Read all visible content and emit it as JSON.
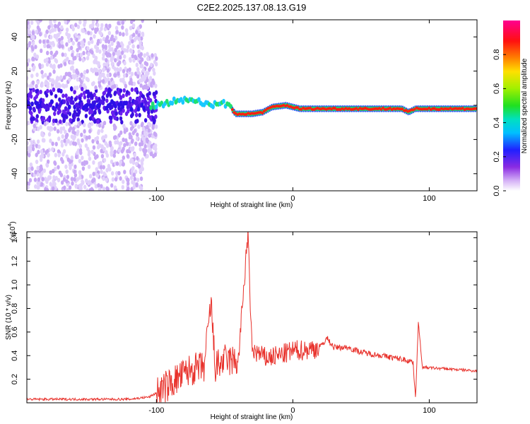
{
  "title": "C2E2.2025.137.08.13.G19",
  "chart_data": [
    {
      "type": "heatmap",
      "xlabel": "Height of straight line (km)",
      "ylabel": "Frequency (Hz)",
      "xlim": [
        -195,
        135
      ],
      "ylim": [
        -50,
        50
      ],
      "xticks": [
        -100,
        0,
        100
      ],
      "yticks": [
        -40,
        -20,
        0,
        20,
        40
      ],
      "colorbar": {
        "label": "Normalized spectral amplitude",
        "range": [
          0,
          1
        ],
        "ticks": [
          "0.0",
          "0.2",
          "0.4",
          "0.6",
          "0.8"
        ]
      },
      "ridge": [
        {
          "x": -195,
          "f": 0
        },
        {
          "x": -110,
          "f": 0
        },
        {
          "x": -100,
          "f": 0
        },
        {
          "x": -90,
          "f": 2
        },
        {
          "x": -80,
          "f": 3
        },
        {
          "x": -70,
          "f": 3
        },
        {
          "x": -60,
          "f": 0
        },
        {
          "x": -50,
          "f": 1
        },
        {
          "x": -45,
          "f": -2
        },
        {
          "x": -42,
          "f": -5
        },
        {
          "x": -30,
          "f": -5
        },
        {
          "x": -22,
          "f": -4
        },
        {
          "x": -15,
          "f": -1
        },
        {
          "x": -5,
          "f": 0
        },
        {
          "x": 5,
          "f": -2
        },
        {
          "x": 60,
          "f": -2
        },
        {
          "x": 80,
          "f": -2
        },
        {
          "x": 85,
          "f": -4
        },
        {
          "x": 90,
          "f": -2
        },
        {
          "x": 100,
          "f": -2
        },
        {
          "x": 135,
          "f": -2
        }
      ],
      "grid": false
    },
    {
      "type": "line",
      "xlabel": "Height of straight line (km)",
      "ylabel": "SNR (10 * v/v)",
      "y_multiplier": "(x10",
      "y_multiplier_exp": "4",
      "y_multiplier_close": ")",
      "xlim": [
        -195,
        135
      ],
      "ylim": [
        0,
        1.45
      ],
      "xticks": [
        -100,
        0,
        100
      ],
      "yticks": [
        "0.2",
        "0.4",
        "0.6",
        "0.8",
        "1.0",
        "1.2",
        "1.4"
      ],
      "series": [
        {
          "values": [
            [
              -195,
              0.03
            ],
            [
              -180,
              0.03
            ],
            [
              -160,
              0.03
            ],
            [
              -140,
              0.03
            ],
            [
              -120,
              0.03
            ],
            [
              -105,
              0.05
            ],
            [
              -95,
              0.12
            ],
            [
              -85,
              0.2
            ],
            [
              -75,
              0.28
            ],
            [
              -65,
              0.3
            ],
            [
              -60,
              0.85
            ],
            [
              -57,
              0.3
            ],
            [
              -50,
              0.36
            ],
            [
              -40,
              0.35
            ],
            [
              -33,
              1.44
            ],
            [
              -30,
              0.45
            ],
            [
              -20,
              0.38
            ],
            [
              -10,
              0.4
            ],
            [
              0,
              0.44
            ],
            [
              10,
              0.45
            ],
            [
              20,
              0.47
            ],
            [
              25,
              0.55
            ],
            [
              30,
              0.47
            ],
            [
              40,
              0.47
            ],
            [
              50,
              0.43
            ],
            [
              60,
              0.41
            ],
            [
              70,
              0.39
            ],
            [
              80,
              0.37
            ],
            [
              88,
              0.35
            ],
            [
              90,
              0.05
            ],
            [
              92,
              0.68
            ],
            [
              95,
              0.3
            ],
            [
              110,
              0.29
            ],
            [
              135,
              0.27
            ]
          ]
        }
      ],
      "color": "#e8302a",
      "grid": false
    }
  ]
}
